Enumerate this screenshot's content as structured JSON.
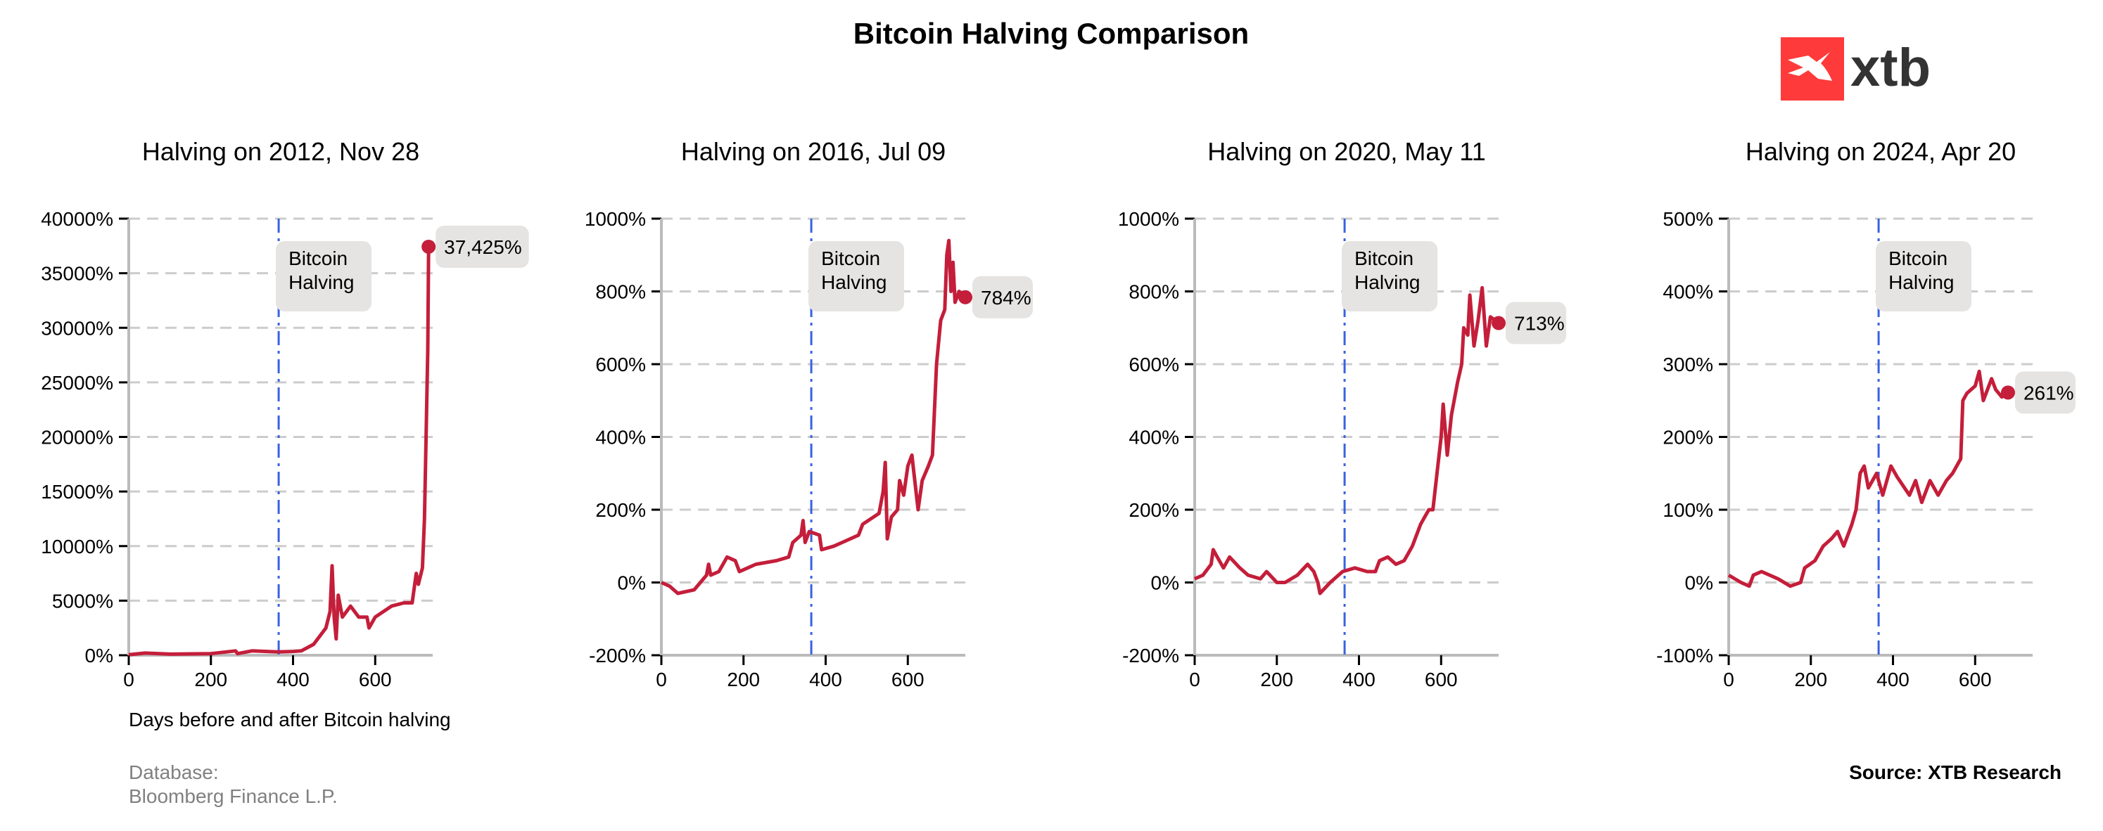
{
  "title": "Bitcoin Halving Comparison",
  "logo": {
    "text": "xtb",
    "color": "#ff3a3a"
  },
  "xlabel": "Days before and after Bitcoin halving",
  "database_label": "Database:",
  "database_value": "Bloomberg Finance L.P.",
  "source": "Source: XTB Research",
  "colors": {
    "line": "#c41e3a",
    "halving_line": "#3a62e0",
    "grid": "#cccccc",
    "label_bg": "#e5e4e2"
  },
  "halving_annotation": [
    "Bitcoin",
    "Halving"
  ],
  "chart_data": [
    {
      "type": "line",
      "title": "Halving on 2012, Nov 28",
      "halving_day": 365,
      "xlim": [
        0,
        740
      ],
      "xticks": [
        0,
        200,
        400,
        600
      ],
      "ylim": [
        0,
        40000
      ],
      "yticks": [
        0,
        5000,
        10000,
        15000,
        20000,
        25000,
        30000,
        35000,
        40000
      ],
      "grid": true,
      "end_label": "37,425%",
      "x": [
        0,
        40,
        100,
        200,
        260,
        265,
        300,
        365,
        400,
        420,
        450,
        470,
        480,
        490,
        495,
        500,
        505,
        510,
        520,
        540,
        560,
        580,
        585,
        600,
        640,
        670,
        690,
        700,
        705,
        715,
        720,
        725,
        728,
        730
      ],
      "y": [
        50,
        200,
        100,
        150,
        400,
        150,
        400,
        300,
        350,
        400,
        1000,
        2000,
        2500,
        4000,
        8200,
        3500,
        1500,
        5500,
        3500,
        4500,
        3500,
        3500,
        2500,
        3500,
        4500,
        4800,
        4800,
        7500,
        6500,
        8000,
        12500,
        22000,
        28000,
        37425
      ]
    },
    {
      "type": "line",
      "title": "Halving on 2016, Jul 09",
      "halving_day": 365,
      "xlim": [
        0,
        740
      ],
      "xticks": [
        0,
        200,
        400,
        600
      ],
      "ylim": [
        -200,
        1000
      ],
      "yticks": [
        -200,
        0,
        200,
        400,
        600,
        800,
        1000
      ],
      "grid": true,
      "end_label": "784%",
      "x": [
        0,
        20,
        40,
        80,
        110,
        115,
        120,
        140,
        160,
        180,
        190,
        210,
        230,
        280,
        310,
        320,
        340,
        345,
        350,
        360,
        385,
        390,
        420,
        440,
        480,
        490,
        530,
        540,
        545,
        550,
        560,
        575,
        580,
        590,
        600,
        610,
        615,
        625,
        635,
        650,
        660,
        670,
        680,
        690,
        695,
        700,
        705,
        710,
        715,
        725,
        740
      ],
      "y": [
        0,
        -10,
        -30,
        -20,
        20,
        50,
        20,
        30,
        70,
        60,
        30,
        40,
        50,
        60,
        70,
        110,
        130,
        170,
        110,
        140,
        130,
        90,
        100,
        110,
        130,
        160,
        190,
        250,
        330,
        120,
        180,
        200,
        280,
        240,
        320,
        350,
        300,
        200,
        280,
        320,
        350,
        600,
        720,
        750,
        900,
        940,
        800,
        880,
        770,
        800,
        784
      ]
    },
    {
      "type": "line",
      "title": "Halving on 2020, May 11",
      "halving_day": 365,
      "xlim": [
        0,
        740
      ],
      "xticks": [
        0,
        200,
        400,
        600
      ],
      "ylim": [
        -200,
        1000
      ],
      "yticks": [
        -200,
        0,
        200,
        400,
        600,
        800,
        1000
      ],
      "grid": true,
      "end_label": "713%",
      "x": [
        0,
        20,
        40,
        45,
        55,
        70,
        85,
        110,
        130,
        160,
        175,
        200,
        220,
        250,
        275,
        290,
        300,
        305,
        330,
        360,
        390,
        420,
        440,
        450,
        470,
        490,
        510,
        530,
        550,
        570,
        580,
        590,
        600,
        605,
        615,
        625,
        640,
        650,
        655,
        665,
        670,
        680,
        690,
        700,
        710,
        720,
        740
      ],
      "y": [
        10,
        20,
        50,
        90,
        70,
        40,
        70,
        40,
        20,
        10,
        30,
        0,
        0,
        20,
        50,
        30,
        0,
        -30,
        0,
        30,
        40,
        30,
        30,
        60,
        70,
        50,
        60,
        100,
        160,
        200,
        200,
        300,
        400,
        490,
        350,
        460,
        550,
        600,
        700,
        680,
        790,
        650,
        720,
        810,
        650,
        730,
        713
      ]
    },
    {
      "type": "line",
      "title": "Halving on 2024, Apr 20",
      "halving_day": 365,
      "xlim": [
        0,
        740
      ],
      "xticks": [
        0,
        200,
        400,
        600
      ],
      "ylim": [
        -100,
        500
      ],
      "yticks": [
        -100,
        0,
        100,
        200,
        300,
        400,
        500
      ],
      "grid": true,
      "end_label": "261%",
      "x": [
        0,
        30,
        50,
        60,
        80,
        120,
        150,
        175,
        185,
        210,
        230,
        250,
        265,
        280,
        300,
        310,
        320,
        330,
        340,
        360,
        375,
        395,
        410,
        440,
        455,
        470,
        490,
        510,
        530,
        545,
        565,
        570,
        580,
        600,
        610,
        620,
        640,
        650,
        665,
        680
      ],
      "y": [
        10,
        0,
        -5,
        10,
        15,
        5,
        -5,
        0,
        20,
        30,
        50,
        60,
        70,
        50,
        80,
        100,
        150,
        160,
        130,
        150,
        120,
        160,
        145,
        120,
        140,
        110,
        140,
        120,
        140,
        150,
        170,
        250,
        260,
        270,
        290,
        250,
        280,
        265,
        255,
        261
      ]
    }
  ]
}
